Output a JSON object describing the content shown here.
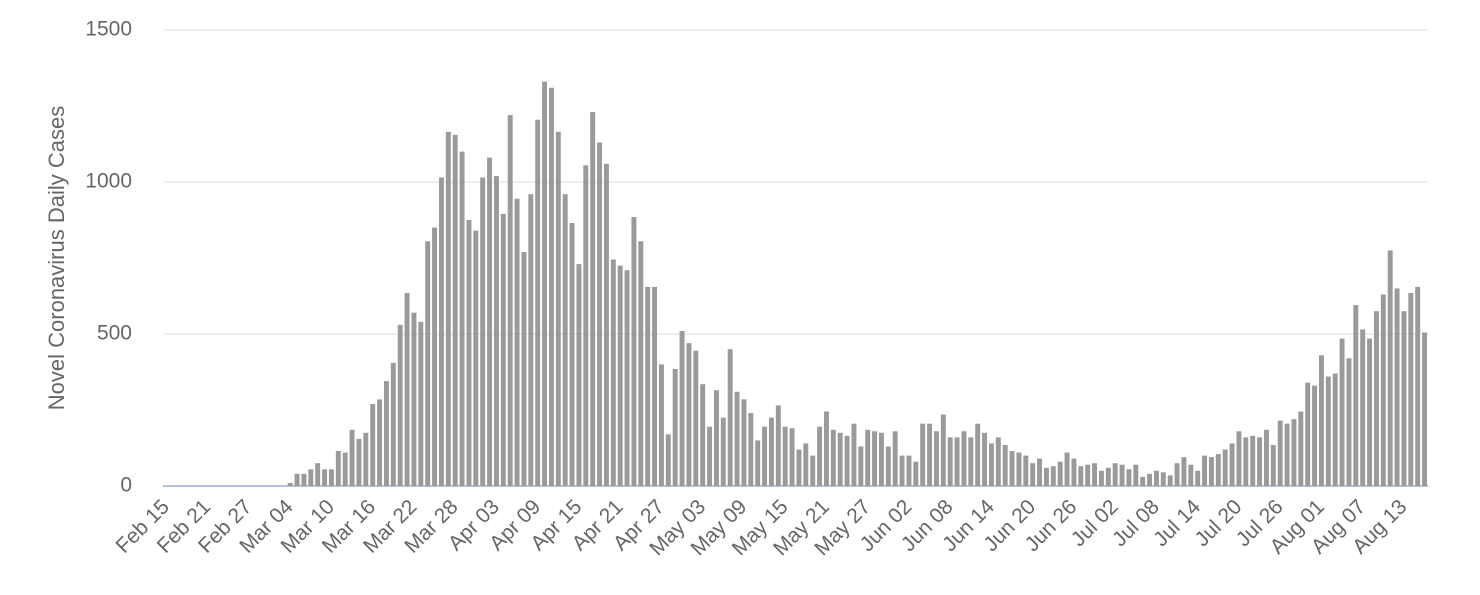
{
  "chart_data": {
    "type": "bar",
    "y_label": "Novel Coronavirus Daily Cases",
    "color": "#9a9a9a",
    "grid": true,
    "ylim": [
      0,
      1500
    ],
    "yticks": [
      0,
      500,
      1000,
      1500
    ],
    "categories": [
      "Feb 15",
      null,
      null,
      null,
      null,
      null,
      "Feb 21",
      null,
      null,
      null,
      null,
      null,
      "Feb 27",
      null,
      null,
      null,
      null,
      null,
      "Mar 04",
      null,
      null,
      null,
      null,
      null,
      "Mar 10",
      null,
      null,
      null,
      null,
      null,
      "Mar 16",
      null,
      null,
      null,
      null,
      null,
      "Mar 22",
      null,
      null,
      null,
      null,
      null,
      "Mar 28",
      null,
      null,
      null,
      null,
      null,
      "Apr 03",
      null,
      null,
      null,
      null,
      null,
      "Apr 09",
      null,
      null,
      null,
      null,
      null,
      "Apr 15",
      null,
      null,
      null,
      null,
      null,
      "Apr 21",
      null,
      null,
      null,
      null,
      null,
      "Apr 27",
      null,
      null,
      null,
      null,
      null,
      "May 03",
      null,
      null,
      null,
      null,
      null,
      "May 09",
      null,
      null,
      null,
      null,
      null,
      "May 15",
      null,
      null,
      null,
      null,
      null,
      "May 21",
      null,
      null,
      null,
      null,
      null,
      "May 27",
      null,
      null,
      null,
      null,
      null,
      "Jun 02",
      null,
      null,
      null,
      null,
      null,
      "Jun 08",
      null,
      null,
      null,
      null,
      null,
      "Jun 14",
      null,
      null,
      null,
      null,
      null,
      "Jun 20",
      null,
      null,
      null,
      null,
      null,
      "Jun 26",
      null,
      null,
      null,
      null,
      null,
      "Jul 02",
      null,
      null,
      null,
      null,
      null,
      "Jul 08",
      null,
      null,
      null,
      null,
      null,
      "Jul 14",
      null,
      null,
      null,
      null,
      null,
      "Jul 20",
      null,
      null,
      null,
      null,
      null,
      "Jul 26",
      null,
      null,
      null,
      null,
      null,
      "Aug 01",
      null,
      null,
      null,
      null,
      null,
      "Aug 07",
      null,
      null,
      null,
      null,
      null,
      "Aug 13",
      null,
      null,
      null
    ],
    "values": [
      0,
      0,
      0,
      0,
      0,
      0,
      0,
      0,
      0,
      0,
      0,
      0,
      0,
      0,
      0,
      0,
      0,
      0,
      10,
      40,
      40,
      55,
      75,
      55,
      55,
      115,
      110,
      185,
      155,
      175,
      270,
      285,
      345,
      405,
      530,
      635,
      570,
      540,
      805,
      850,
      1015,
      1165,
      1155,
      1100,
      875,
      840,
      1015,
      1080,
      1020,
      895,
      1220,
      945,
      770,
      960,
      1205,
      1330,
      1310,
      1165,
      960,
      865,
      730,
      1055,
      1230,
      1130,
      1060,
      745,
      725,
      710,
      885,
      805,
      655,
      655,
      400,
      170,
      385,
      510,
      470,
      445,
      335,
      195,
      315,
      225,
      450,
      310,
      285,
      240,
      150,
      195,
      225,
      265,
      195,
      190,
      120,
      140,
      100,
      195,
      245,
      185,
      175,
      165,
      205,
      130,
      185,
      180,
      175,
      130,
      180,
      100,
      100,
      80,
      205,
      205,
      180,
      235,
      160,
      160,
      180,
      160,
      205,
      175,
      140,
      160,
      135,
      115,
      110,
      100,
      75,
      90,
      60,
      65,
      80,
      110,
      90,
      65,
      70,
      75,
      50,
      60,
      75,
      70,
      55,
      70,
      30,
      40,
      50,
      45,
      35,
      75,
      95,
      70,
      50,
      100,
      95,
      105,
      120,
      140,
      180,
      160,
      165,
      160,
      185,
      135,
      215,
      205,
      220,
      245,
      340,
      330,
      430,
      360,
      370,
      485,
      420,
      595,
      515,
      485,
      575,
      630,
      775,
      650,
      575,
      635,
      655,
      505
    ]
  }
}
